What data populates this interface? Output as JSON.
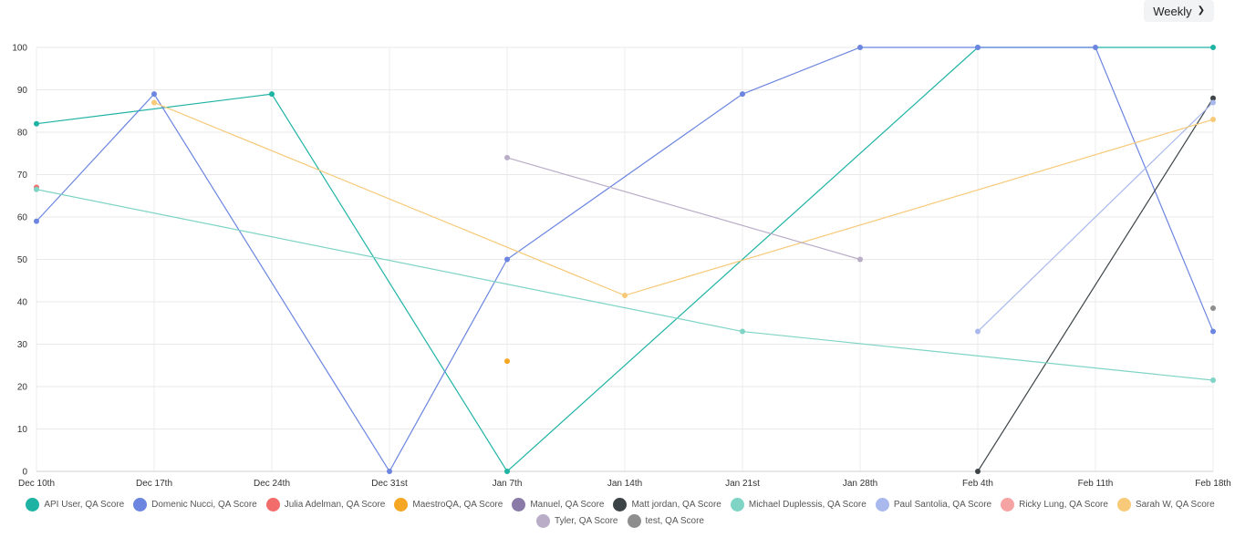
{
  "controls": {
    "period_label": "Weekly"
  },
  "chart_data": {
    "type": "line",
    "x": [
      "Dec 10th",
      "Dec 17th",
      "Dec 24th",
      "Dec 31st",
      "Jan 7th",
      "Jan 14th",
      "Jan 21st",
      "Jan 28th",
      "Feb 4th",
      "Feb 11th",
      "Feb 18th"
    ],
    "ylim": [
      0,
      100
    ],
    "yticks": [
      0,
      10,
      20,
      30,
      40,
      50,
      60,
      70,
      80,
      90,
      100
    ],
    "grid": true,
    "legend_position": "bottom",
    "series": [
      {
        "name": "API User, QA Score",
        "color": "#1fb3a4",
        "values": [
          82,
          null,
          89,
          null,
          0,
          null,
          null,
          null,
          100,
          null,
          100
        ]
      },
      {
        "name": "Domenic Nucci, QA Score",
        "color": "#6b85e0",
        "values": [
          59,
          89,
          null,
          0,
          50,
          null,
          89,
          100,
          100,
          100,
          33
        ]
      },
      {
        "name": "Julia Adelman, QA Score",
        "color": "#f26c6c",
        "values": [
          67,
          null,
          null,
          null,
          null,
          null,
          null,
          null,
          null,
          null,
          null
        ]
      },
      {
        "name": "MaestroQA, QA Score",
        "color": "#f5a623",
        "values": [
          null,
          null,
          null,
          null,
          26,
          null,
          null,
          null,
          null,
          null,
          null
        ]
      },
      {
        "name": "Manuel, QA Score",
        "color": "#8a7aa8",
        "values": [
          null,
          null,
          null,
          null,
          null,
          null,
          null,
          null,
          null,
          null,
          null
        ]
      },
      {
        "name": "Matt jordan, QA Score",
        "color": "#3d4448",
        "values": [
          null,
          null,
          null,
          null,
          null,
          null,
          null,
          null,
          0,
          null,
          88
        ]
      },
      {
        "name": "Michael Duplessis, QA Score",
        "color": "#7fd4c6",
        "values": [
          66.5,
          null,
          null,
          null,
          null,
          null,
          33,
          null,
          null,
          null,
          21.5
        ]
      },
      {
        "name": "Paul Santolia, QA Score",
        "color": "#a9b9ee",
        "values": [
          null,
          null,
          null,
          null,
          null,
          null,
          null,
          null,
          33,
          null,
          87
        ]
      },
      {
        "name": "Ricky Lung, QA Score",
        "color": "#f5a3a3",
        "values": [
          null,
          null,
          null,
          null,
          null,
          null,
          null,
          null,
          null,
          null,
          null
        ]
      },
      {
        "name": "Sarah W, QA Score",
        "color": "#f7c978",
        "values": [
          null,
          87,
          null,
          null,
          null,
          41.5,
          null,
          null,
          null,
          null,
          83
        ]
      },
      {
        "name": "Tyler, QA Score",
        "color": "#b9adc8",
        "values": [
          null,
          null,
          null,
          null,
          74,
          null,
          null,
          50,
          null,
          null,
          null
        ]
      },
      {
        "name": "test, QA Score",
        "color": "#8e8e8e",
        "values": [
          null,
          null,
          null,
          null,
          null,
          null,
          null,
          null,
          null,
          null,
          38.5
        ]
      }
    ]
  }
}
